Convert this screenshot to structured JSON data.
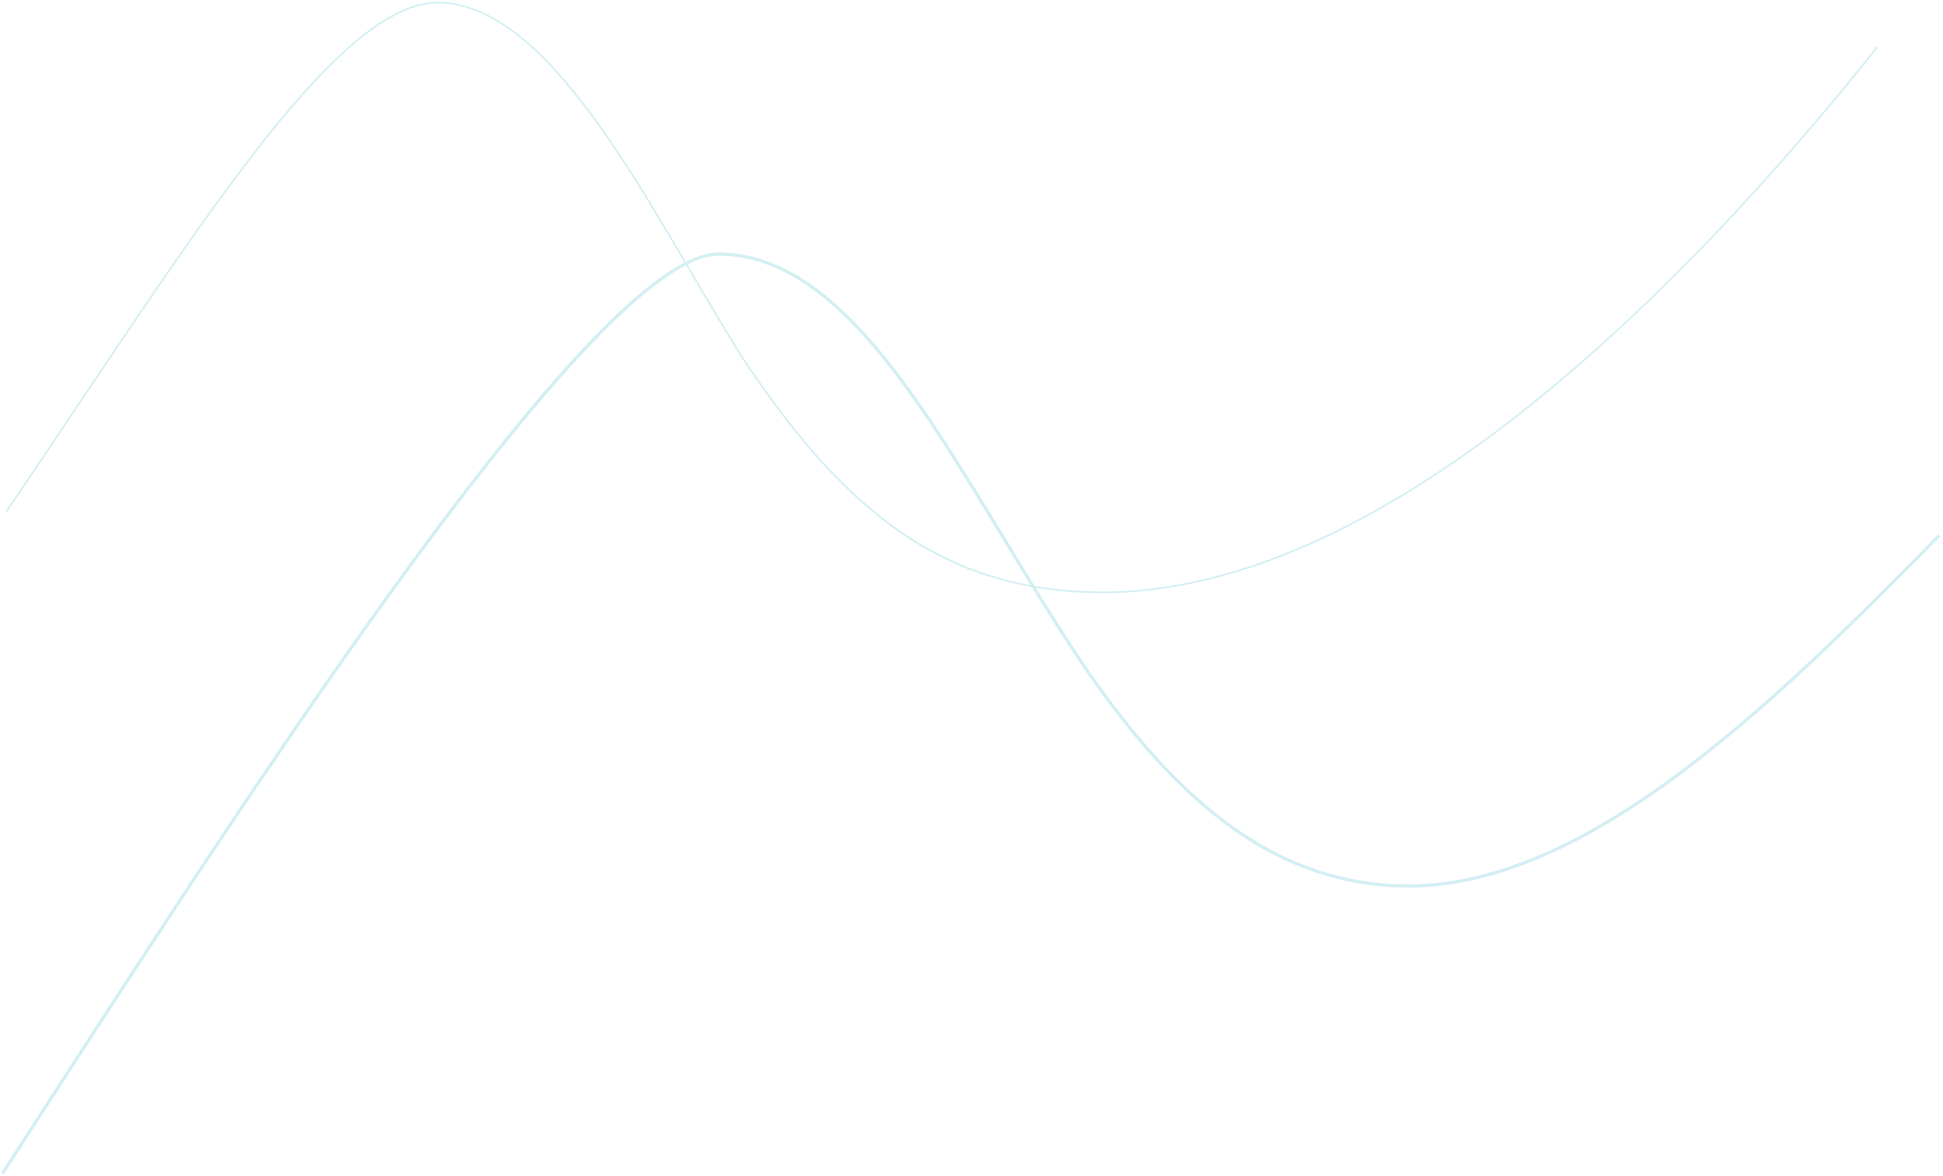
{
  "background": "#ffffff",
  "curves": {
    "color": "#d3eff3",
    "items": [
      {
        "name": "thin-wave"
      },
      {
        "name": "thick-wave"
      }
    ]
  }
}
